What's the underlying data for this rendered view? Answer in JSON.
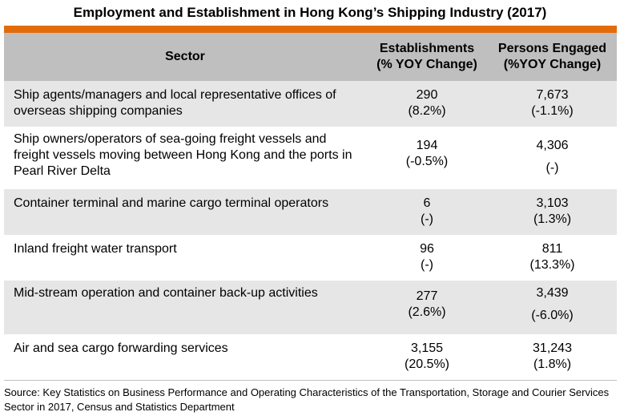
{
  "title": "Employment and Establishment in Hong Kong’s Shipping Industry (2017)",
  "header": {
    "sector": "Sector",
    "establishments_line1": "Establishments",
    "establishments_line2": "(% YOY Change)",
    "persons_line1": "Persons Engaged",
    "persons_line2": "(%YOY Change)"
  },
  "rows": [
    {
      "sector": "Ship agents/managers and local representative offices of overseas shipping companies",
      "establishments": "290",
      "establishments_change": "(8.2%)",
      "persons": "7,673",
      "persons_change": "(-1.1%)"
    },
    {
      "sector": "Ship owners/operators of sea-going freight vessels and freight vessels moving between Hong Kong and the ports in Pearl River Delta",
      "establishments": "194",
      "establishments_change": "(-0.5%)",
      "persons": "4,306",
      "persons_change": "(-)"
    },
    {
      "sector": "Container terminal and marine cargo terminal operators",
      "establishments": "6",
      "establishments_change": "(-)",
      "persons": "3,103",
      "persons_change": "(1.3%)"
    },
    {
      "sector": "Inland freight water transport",
      "establishments": "96",
      "establishments_change": "(-)",
      "persons": "811",
      "persons_change": "(13.3%)"
    },
    {
      "sector": "Mid-stream operation and container back-up activities",
      "establishments": "277",
      "establishments_change": "(2.6%)",
      "persons": "3,439",
      "persons_change": "(-6.0%)"
    },
    {
      "sector": "Air and sea cargo forwarding services",
      "establishments": "3,155",
      "establishments_change": "(20.5%)",
      "persons": "31,243",
      "persons_change": "(1.8%)"
    }
  ],
  "source": "Source: Key Statistics on Business Performance and Operating Characteristics of the Transportation, Storage and Courier Services Sector in 2017, Census and Statistics Department",
  "colors": {
    "accent_bar": "#e36c0a",
    "header_bg": "#bfbfbf",
    "shaded_row_bg": "#e6e6e6"
  }
}
